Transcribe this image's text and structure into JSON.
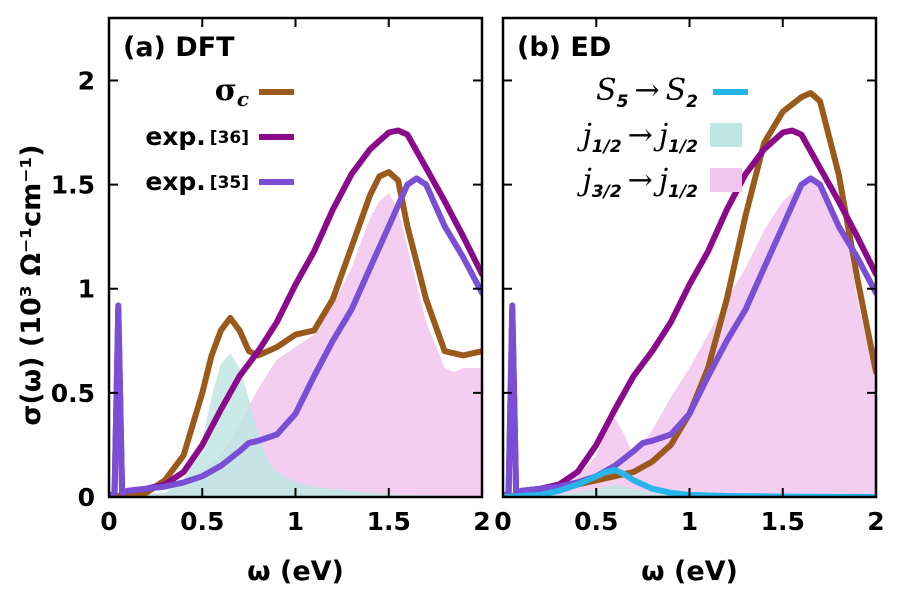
{
  "colors": {
    "sigma_c": "#9a5a1c",
    "exp36": "#8b0a8b",
    "exp35": "#7b4ed6",
    "s5s2": "#27b5ea",
    "j12j12_fill": "#bfe6e3",
    "j32j12_fill": "#f1c6ee"
  },
  "figure": {
    "ylabel": "σ(ω) (10³ Ω⁻¹cm⁻¹)",
    "xlabel": "ω (eV)"
  },
  "chart_data": [
    {
      "type": "line",
      "title": "(a) DFT",
      "xlabel": "ω (eV)",
      "ylabel": "σ(ω) (10³ Ω⁻¹cm⁻¹)",
      "xlim": [
        0,
        2
      ],
      "ylim": [
        0,
        2.3
      ],
      "x_ticks": [
        "0",
        "0.5",
        "1",
        "1.5",
        "2"
      ],
      "y_ticks": [
        "0",
        "0.5",
        "1",
        "1.5",
        "2"
      ],
      "legend": [
        {
          "label": "σ",
          "sub": "c",
          "ref": "",
          "key": "sigma_c",
          "kind": "line"
        },
        {
          "label": "exp.",
          "sub": "",
          "ref": "[36]",
          "key": "exp36",
          "kind": "line"
        },
        {
          "label": "exp.",
          "sub": "",
          "ref": "[35]",
          "key": "exp35",
          "kind": "line"
        }
      ],
      "areas": [
        {
          "key": "j32j12_fill",
          "x": [
            0.05,
            0.3,
            0.4,
            0.5,
            0.6,
            0.7,
            0.8,
            0.9,
            1.0,
            1.1,
            1.2,
            1.3,
            1.4,
            1.45,
            1.5,
            1.55,
            1.6,
            1.7,
            1.8,
            1.85,
            1.9,
            2.0
          ],
          "y": [
            0,
            0.02,
            0.05,
            0.12,
            0.2,
            0.35,
            0.52,
            0.66,
            0.72,
            0.78,
            0.92,
            1.1,
            1.34,
            1.42,
            1.46,
            1.38,
            1.2,
            0.84,
            0.62,
            0.6,
            0.62,
            0.62
          ]
        },
        {
          "key": "j12j12_fill",
          "x": [
            0.05,
            0.3,
            0.4,
            0.5,
            0.55,
            0.6,
            0.65,
            0.7,
            0.75,
            0.8,
            0.85,
            0.9,
            1.0,
            1.1,
            1.2,
            1.4,
            1.6,
            2.0
          ],
          "y": [
            0,
            0.02,
            0.08,
            0.28,
            0.48,
            0.64,
            0.69,
            0.62,
            0.47,
            0.3,
            0.18,
            0.12,
            0.07,
            0.05,
            0.04,
            0.02,
            0.01,
            0.0
          ]
        }
      ],
      "series": [
        {
          "key": "sigma_c",
          "x": [
            0,
            0.1,
            0.2,
            0.3,
            0.4,
            0.5,
            0.55,
            0.6,
            0.65,
            0.7,
            0.75,
            0.8,
            0.9,
            1.0,
            1.1,
            1.2,
            1.3,
            1.4,
            1.45,
            1.5,
            1.55,
            1.6,
            1.7,
            1.8,
            1.9,
            2.0
          ],
          "y": [
            0,
            0.01,
            0.02,
            0.08,
            0.2,
            0.5,
            0.68,
            0.8,
            0.86,
            0.8,
            0.7,
            0.68,
            0.72,
            0.78,
            0.8,
            0.95,
            1.2,
            1.45,
            1.54,
            1.56,
            1.52,
            1.3,
            0.95,
            0.7,
            0.68,
            0.7
          ]
        },
        {
          "key": "exp36",
          "x": [
            0,
            0.03,
            0.05,
            0.07,
            0.1,
            0.2,
            0.3,
            0.4,
            0.5,
            0.6,
            0.7,
            0.8,
            0.9,
            1.0,
            1.1,
            1.2,
            1.3,
            1.4,
            1.5,
            1.55,
            1.6,
            1.7,
            1.8,
            1.9,
            2.0
          ],
          "y": [
            0,
            0.02,
            0.9,
            0.02,
            0.03,
            0.04,
            0.06,
            0.12,
            0.25,
            0.42,
            0.58,
            0.7,
            0.84,
            1.02,
            1.18,
            1.38,
            1.55,
            1.67,
            1.75,
            1.76,
            1.74,
            1.58,
            1.42,
            1.25,
            1.07
          ]
        },
        {
          "key": "exp35",
          "x": [
            0,
            0.03,
            0.05,
            0.07,
            0.1,
            0.2,
            0.3,
            0.4,
            0.5,
            0.6,
            0.7,
            0.75,
            0.8,
            0.9,
            1.0,
            1.1,
            1.2,
            1.3,
            1.4,
            1.5,
            1.6,
            1.65,
            1.7,
            1.8,
            1.9,
            2.0
          ],
          "y": [
            0,
            0.02,
            0.92,
            0.02,
            0.03,
            0.04,
            0.05,
            0.07,
            0.1,
            0.15,
            0.22,
            0.26,
            0.27,
            0.3,
            0.4,
            0.58,
            0.75,
            0.9,
            1.1,
            1.3,
            1.5,
            1.53,
            1.5,
            1.3,
            1.15,
            0.98
          ]
        }
      ]
    },
    {
      "type": "line",
      "title": "(b) ED",
      "xlabel": "ω (eV)",
      "xlim": [
        0,
        2
      ],
      "ylim": [
        0,
        2.3
      ],
      "x_ticks": [
        "0",
        "0.5",
        "1",
        "1.5",
        "2"
      ],
      "legend": [
        {
          "label": "S",
          "sub": "5",
          "label2": "S",
          "sub2": "2",
          "key": "s5s2",
          "kind": "line"
        },
        {
          "label": "j",
          "sub": "1/2",
          "label2": "j",
          "sub2": "1/2",
          "key": "j12j12_fill",
          "kind": "box"
        },
        {
          "label": "j",
          "sub": "3/2",
          "label2": "j",
          "sub2": "1/2",
          "key": "j32j12_fill",
          "kind": "box"
        }
      ],
      "areas": [
        {
          "key": "j32j12_fill",
          "x": [
            0.0,
            0.1,
            0.2,
            0.3,
            0.4,
            0.5,
            0.55,
            0.6,
            0.65,
            0.7,
            0.8,
            0.9,
            1.0,
            1.1,
            1.2,
            1.3,
            1.4,
            1.5,
            1.6,
            1.65,
            1.7,
            1.8,
            1.85,
            1.9,
            2.0
          ],
          "y": [
            0,
            0.02,
            0.03,
            0.05,
            0.1,
            0.2,
            0.32,
            0.38,
            0.3,
            0.2,
            0.32,
            0.48,
            0.62,
            0.78,
            0.95,
            1.1,
            1.28,
            1.42,
            1.5,
            1.52,
            1.48,
            1.3,
            1.22,
            0.95,
            0.55
          ]
        },
        {
          "key": "j12j12_fill",
          "x": [
            0,
            0.3,
            0.5,
            0.6,
            0.7,
            0.8,
            1.0,
            2.0
          ],
          "y": [
            0,
            0.01,
            0.04,
            0.06,
            0.04,
            0.02,
            0.01,
            0.0
          ]
        }
      ],
      "series": [
        {
          "key": "sigma_c",
          "x": [
            0,
            0.1,
            0.2,
            0.3,
            0.4,
            0.5,
            0.6,
            0.7,
            0.8,
            0.9,
            1.0,
            1.1,
            1.2,
            1.3,
            1.4,
            1.5,
            1.6,
            1.65,
            1.7,
            1.8,
            1.9,
            2.0
          ],
          "y": [
            0,
            0.01,
            0.02,
            0.04,
            0.06,
            0.08,
            0.1,
            0.12,
            0.17,
            0.25,
            0.4,
            0.62,
            0.95,
            1.35,
            1.7,
            1.85,
            1.92,
            1.94,
            1.9,
            1.55,
            1.05,
            0.6
          ]
        },
        {
          "key": "exp36",
          "x": [
            0,
            0.03,
            0.05,
            0.07,
            0.1,
            0.2,
            0.3,
            0.4,
            0.5,
            0.6,
            0.7,
            0.8,
            0.9,
            1.0,
            1.1,
            1.2,
            1.3,
            1.4,
            1.5,
            1.55,
            1.6,
            1.7,
            1.8,
            1.9,
            2.0
          ],
          "y": [
            0,
            0.02,
            0.9,
            0.02,
            0.03,
            0.04,
            0.06,
            0.12,
            0.25,
            0.42,
            0.58,
            0.7,
            0.84,
            1.02,
            1.18,
            1.38,
            1.55,
            1.67,
            1.75,
            1.76,
            1.74,
            1.58,
            1.42,
            1.25,
            1.07
          ]
        },
        {
          "key": "exp35",
          "x": [
            0,
            0.03,
            0.05,
            0.07,
            0.1,
            0.2,
            0.3,
            0.4,
            0.5,
            0.6,
            0.7,
            0.75,
            0.8,
            0.9,
            1.0,
            1.1,
            1.2,
            1.3,
            1.4,
            1.5,
            1.6,
            1.65,
            1.7,
            1.8,
            1.9,
            2.0
          ],
          "y": [
            0,
            0.02,
            0.92,
            0.02,
            0.03,
            0.04,
            0.05,
            0.07,
            0.1,
            0.15,
            0.22,
            0.26,
            0.27,
            0.3,
            0.4,
            0.58,
            0.75,
            0.9,
            1.1,
            1.3,
            1.5,
            1.53,
            1.5,
            1.3,
            1.15,
            0.98
          ]
        },
        {
          "key": "s5s2",
          "x": [
            0,
            0.2,
            0.3,
            0.4,
            0.5,
            0.55,
            0.6,
            0.65,
            0.7,
            0.8,
            0.9,
            1.0,
            1.2,
            1.5,
            2.0
          ],
          "y": [
            0,
            0.01,
            0.03,
            0.06,
            0.1,
            0.12,
            0.13,
            0.11,
            0.08,
            0.04,
            0.02,
            0.01,
            0.005,
            0.002,
            0.0
          ]
        }
      ]
    }
  ]
}
